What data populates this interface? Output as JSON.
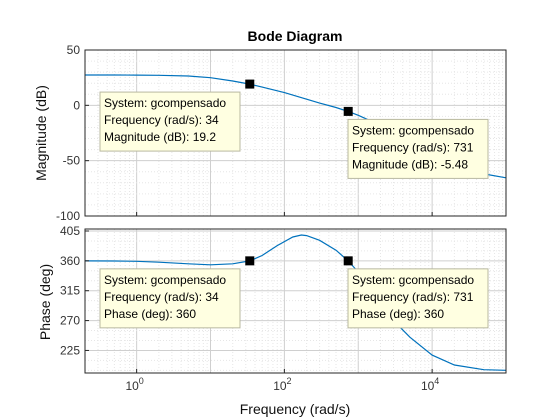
{
  "chart_data": {
    "type": "line",
    "title": "Bode Diagram",
    "xlabel": "Frequency  (rad/s)",
    "x_scale": "log",
    "xlim": [
      0.2,
      100000
    ],
    "x_ticks": [
      1,
      100,
      10000
    ],
    "x_tick_labels": [
      [
        "10",
        "0"
      ],
      [
        "10",
        "2"
      ],
      [
        "10",
        "4"
      ]
    ],
    "grid": true,
    "line_color": "#0072BD",
    "panels": [
      {
        "name": "magnitude",
        "ylabel": "Magnitude (dB)",
        "ylim": [
          -100,
          50
        ],
        "y_ticks": [
          -100,
          -50,
          0,
          50
        ],
        "y_tick_labels": [
          "-100",
          "-50",
          "0",
          "50"
        ],
        "x": [
          0.2,
          0.5,
          1,
          2,
          5,
          10,
          20,
          34,
          50,
          100,
          200,
          300,
          500,
          731,
          1000,
          2000,
          3000,
          5000,
          10000,
          20000,
          50000,
          100000
        ],
        "y": [
          27.4,
          27.4,
          27.3,
          27.1,
          26.5,
          25.0,
          22.0,
          19.2,
          16.5,
          11.5,
          5.5,
          2.0,
          -2.0,
          -5.48,
          -9.0,
          -18.0,
          -24.0,
          -32.0,
          -43.0,
          -52.0,
          -62.0,
          -65.5
        ]
      },
      {
        "name": "phase",
        "ylabel": "Phase (deg)",
        "ylim": [
          191,
          408
        ],
        "y_ticks": [
          225,
          270,
          315,
          360,
          405
        ],
        "y_tick_labels": [
          "225",
          "270",
          "315",
          "360",
          "405"
        ],
        "x": [
          0.2,
          0.5,
          1,
          2,
          5,
          10,
          20,
          34,
          50,
          80,
          130,
          170,
          200,
          300,
          500,
          731,
          1000,
          2000,
          3000,
          5000,
          10000,
          20000,
          50000,
          100000
        ],
        "y": [
          360,
          359.8,
          359.3,
          358.0,
          355.5,
          354.0,
          355.5,
          360,
          368,
          383,
          396,
          399,
          398,
          391,
          376,
          360,
          343,
          298,
          270,
          245,
          218,
          203,
          196,
          195
        ]
      }
    ],
    "data_tips": [
      {
        "panel": 0,
        "x": 34,
        "y": 19.2,
        "anchor": "left-below",
        "lines": [
          "System: gcompensado",
          "Frequency (rad/s): 34",
          "Magnitude (dB): 19.2"
        ]
      },
      {
        "panel": 0,
        "x": 731,
        "y": -5.48,
        "anchor": "right-below",
        "lines": [
          "System: gcompensado",
          "Frequency (rad/s): 731",
          "Magnitude (dB): -5.48"
        ]
      },
      {
        "panel": 1,
        "x": 34,
        "y": 360,
        "anchor": "left-below",
        "lines": [
          "System: gcompensado",
          "Frequency (rad/s): 34",
          "Phase (deg): 360"
        ]
      },
      {
        "panel": 1,
        "x": 731,
        "y": 360,
        "anchor": "right-below",
        "lines": [
          "System: gcompensado",
          "Frequency (rad/s): 731",
          "Phase (deg): 360"
        ]
      }
    ]
  }
}
